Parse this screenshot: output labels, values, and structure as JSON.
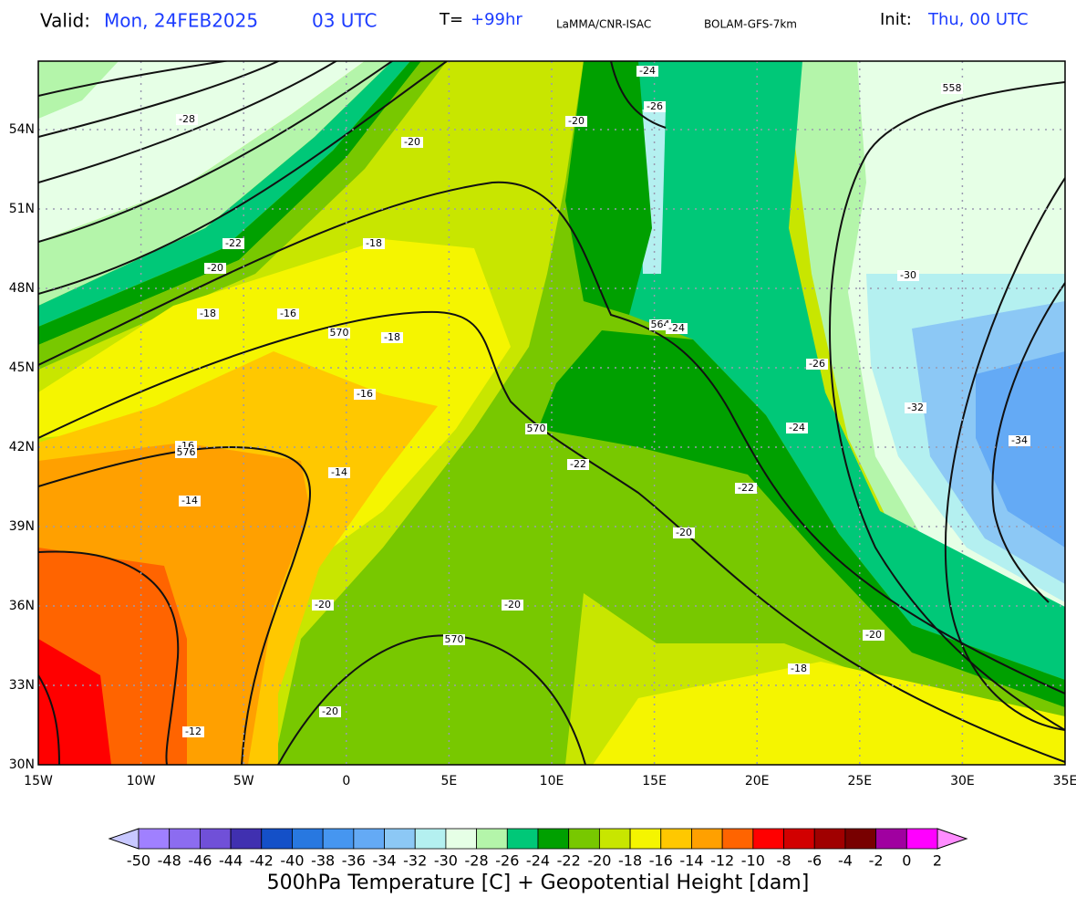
{
  "header": {
    "valid_label": "Valid:",
    "valid_date": "Mon, 24FEB2025",
    "valid_time": "03 UTC",
    "t_label": "T=",
    "t_value": "+99hr",
    "source": "LaMMA/CNR-ISAC",
    "model": "BOLAM-GFS-7km",
    "init_label": "Init:",
    "init_value": "Thu, 00 UTC"
  },
  "axes": {
    "lat": [
      "30N",
      "33N",
      "36N",
      "39N",
      "42N",
      "45N",
      "48N",
      "51N",
      "54N"
    ],
    "lon": [
      "15W",
      "10W",
      "5W",
      "0",
      "5E",
      "10E",
      "15E",
      "20E",
      "25E",
      "30E",
      "35E"
    ]
  },
  "contour_labels": [
    "-24",
    "-26",
    "-20",
    "-28",
    "-20",
    "-22",
    "-18",
    "-20",
    "-18",
    "-16",
    "570",
    "-18",
    "558",
    "-30",
    "564",
    "-24",
    "-26",
    "-16",
    "-32",
    "-24",
    "570",
    "-16",
    "576",
    "-14",
    "-22",
    "-34",
    "-22",
    "-14",
    "-20",
    "-20",
    "-20",
    "570",
    "-20",
    "-18",
    "-20",
    "-12"
  ],
  "colorbar": {
    "labels": [
      "-50",
      "-48",
      "-46",
      "-44",
      "-42",
      "-40",
      "-38",
      "-36",
      "-34",
      "-32",
      "-30",
      "-28",
      "-26",
      "-24",
      "-22",
      "-20",
      "-18",
      "-16",
      "-14",
      "-12",
      "-10",
      "-8",
      "-6",
      "-4",
      "-2",
      "0",
      "2"
    ],
    "colors": [
      "#a080ff",
      "#8c6cf0",
      "#7050d8",
      "#4030b0",
      "#1450c8",
      "#2878e0",
      "#4696f0",
      "#64aaf5",
      "#8cc8f5",
      "#b4f0f0",
      "#e6ffe6",
      "#b4f5aa",
      "#00c878",
      "#00a000",
      "#78c800",
      "#c8e600",
      "#f5f500",
      "#ffc800",
      "#ffa000",
      "#ff6400",
      "#ff0000",
      "#d20000",
      "#a00000",
      "#780000",
      "#a000a0",
      "#ff00ff"
    ],
    "under_color": "#c8c8ff",
    "over_color": "#ff8cff"
  },
  "title": "500hPa Temperature [C] + Geopotential Height [dam]"
}
